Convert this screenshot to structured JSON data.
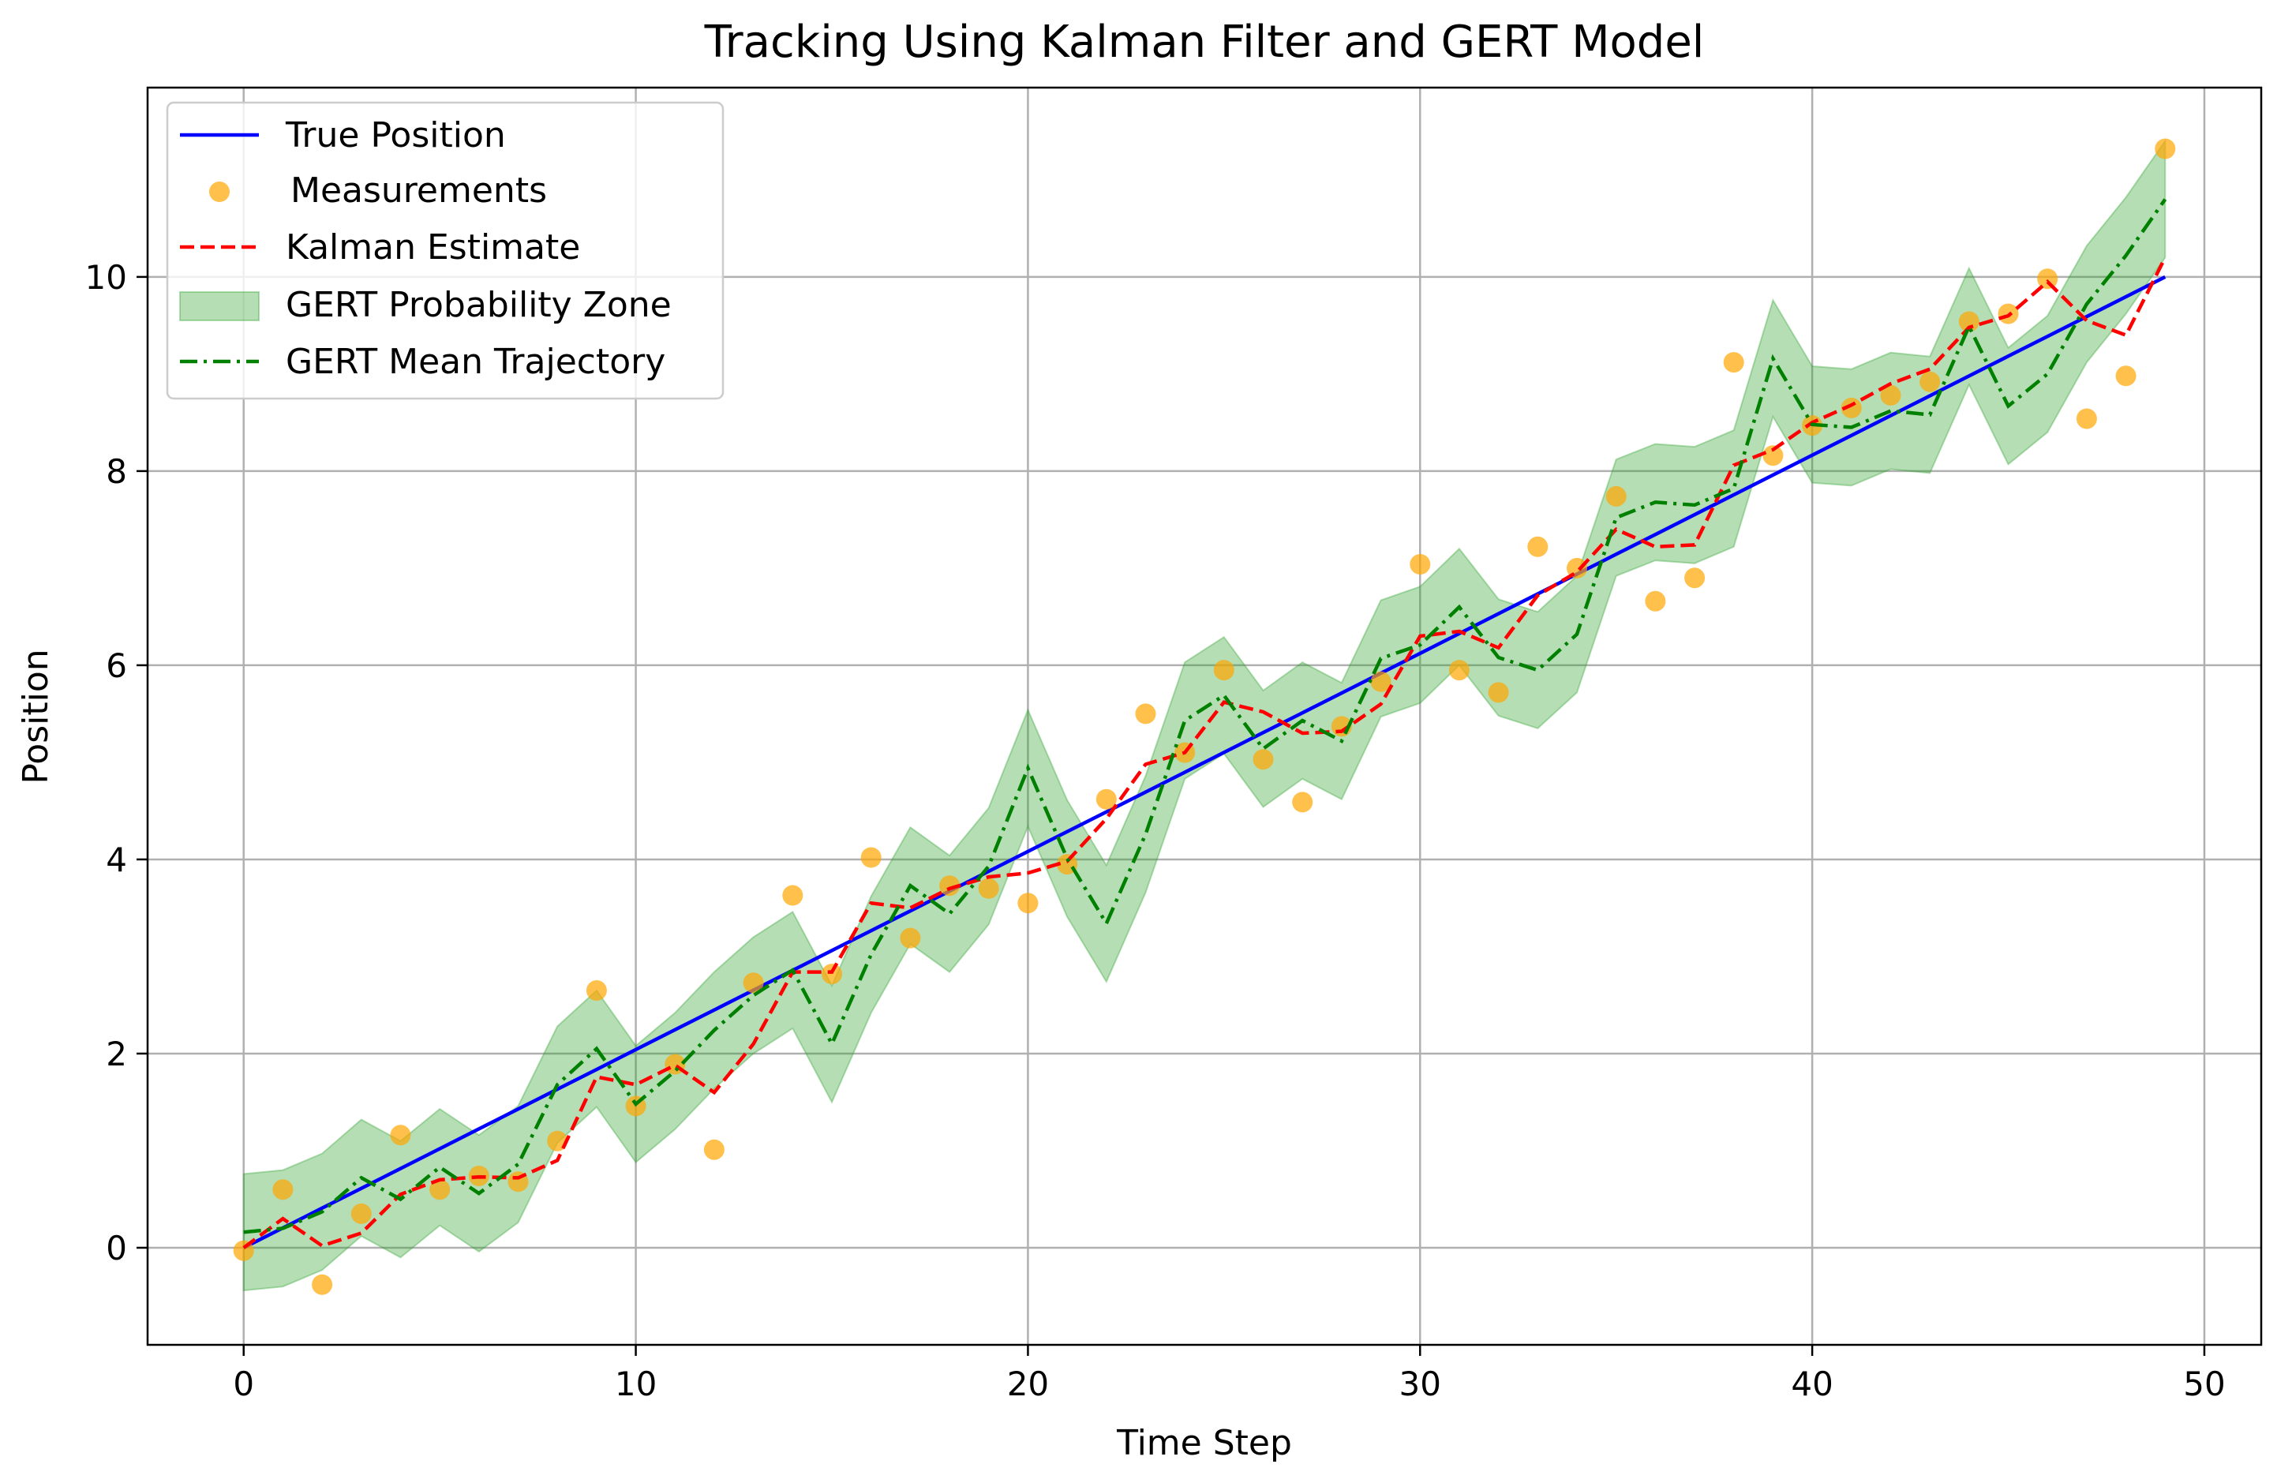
{
  "chart_data": {
    "type": "line",
    "title": "Tracking Using Kalman Filter and GERT Model",
    "xlabel": "Time Step",
    "ylabel": "Position",
    "xlim": [
      -2.45,
      51.45
    ],
    "ylim": [
      -1.0,
      11.95
    ],
    "xticks": [
      0,
      10,
      20,
      30,
      40,
      50
    ],
    "yticks": [
      0,
      2,
      4,
      6,
      8,
      10
    ],
    "grid": true,
    "legend_position": "top-left",
    "legend": {
      "true_position": "True Position",
      "measurements": "Measurements",
      "kalman": "Kalman Estimate",
      "zone": "GERT Probability Zone",
      "gert_mean": "GERT Mean Trajectory"
    },
    "colors": {
      "true_position": "#0000ff",
      "measurements": "#ffa500",
      "kalman": "#ff0000",
      "zone": "#2ca02c",
      "gert_mean": "#008000",
      "grid": "#b0b0b0"
    },
    "x": [
      0,
      1,
      2,
      3,
      4,
      5,
      6,
      7,
      8,
      9,
      10,
      11,
      12,
      13,
      14,
      15,
      16,
      17,
      18,
      19,
      20,
      21,
      22,
      23,
      24,
      25,
      26,
      27,
      28,
      29,
      30,
      31,
      32,
      33,
      34,
      35,
      36,
      37,
      38,
      39,
      40,
      41,
      42,
      43,
      44,
      45,
      46,
      47,
      48,
      49
    ],
    "true_position": [
      0.0,
      0.2041,
      0.4082,
      0.6122,
      0.8163,
      1.0204,
      1.2245,
      1.4286,
      1.6327,
      1.8367,
      2.0408,
      2.2449,
      2.449,
      2.6531,
      2.8571,
      3.0612,
      3.2653,
      3.4694,
      3.6735,
      3.8776,
      4.0816,
      4.2857,
      4.4898,
      4.6939,
      4.898,
      5.102,
      5.3061,
      5.5102,
      5.7143,
      5.9184,
      6.1224,
      6.3265,
      6.5306,
      6.7347,
      6.9388,
      7.1429,
      7.3469,
      7.551,
      7.7551,
      7.9592,
      8.1633,
      8.3673,
      8.5714,
      8.7755,
      8.9796,
      9.1837,
      9.3878,
      9.5918,
      9.7959,
      10.0
    ],
    "measurements": [
      -0.03,
      0.6,
      -0.38,
      0.35,
      1.16,
      0.6,
      0.74,
      0.68,
      1.1,
      2.65,
      1.46,
      1.89,
      1.01,
      2.73,
      3.63,
      2.82,
      4.02,
      3.19,
      3.73,
      3.7,
      3.55,
      3.95,
      4.62,
      5.5,
      5.1,
      5.95,
      5.03,
      4.59,
      5.37,
      5.83,
      7.04,
      5.95,
      5.72,
      7.22,
      7.0,
      7.74,
      6.66,
      6.9,
      9.12,
      8.16,
      8.47,
      8.65,
      8.78,
      8.92,
      9.54,
      9.62,
      9.98,
      8.54,
      8.98,
      11.32
    ],
    "kalman_estimate": [
      0.0,
      0.3,
      0.02,
      0.15,
      0.55,
      0.7,
      0.73,
      0.72,
      0.9,
      1.76,
      1.68,
      1.88,
      1.6,
      2.1,
      2.84,
      2.84,
      3.55,
      3.5,
      3.7,
      3.82,
      3.86,
      3.98,
      4.42,
      4.98,
      5.1,
      5.62,
      5.52,
      5.3,
      5.32,
      5.6,
      6.3,
      6.35,
      6.18,
      6.72,
      6.96,
      7.4,
      7.22,
      7.24,
      8.06,
      8.22,
      8.5,
      8.68,
      8.9,
      9.05,
      9.48,
      9.6,
      9.95,
      9.55,
      9.4,
      10.2
    ],
    "gert_mean": [
      0.16,
      0.2,
      0.37,
      0.72,
      0.5,
      0.83,
      0.56,
      0.86,
      1.68,
      2.05,
      1.48,
      1.82,
      2.24,
      2.6,
      2.86,
      2.1,
      3.02,
      3.73,
      3.44,
      3.93,
      4.94,
      4.01,
      3.34,
      4.26,
      5.43,
      5.69,
      5.14,
      5.43,
      5.22,
      6.07,
      6.21,
      6.6,
      6.08,
      5.95,
      6.32,
      7.52,
      7.68,
      7.65,
      7.82,
      9.16,
      8.48,
      8.45,
      8.62,
      8.58,
      9.49,
      8.67,
      9.0,
      9.72,
      10.22,
      10.8
    ]
  }
}
